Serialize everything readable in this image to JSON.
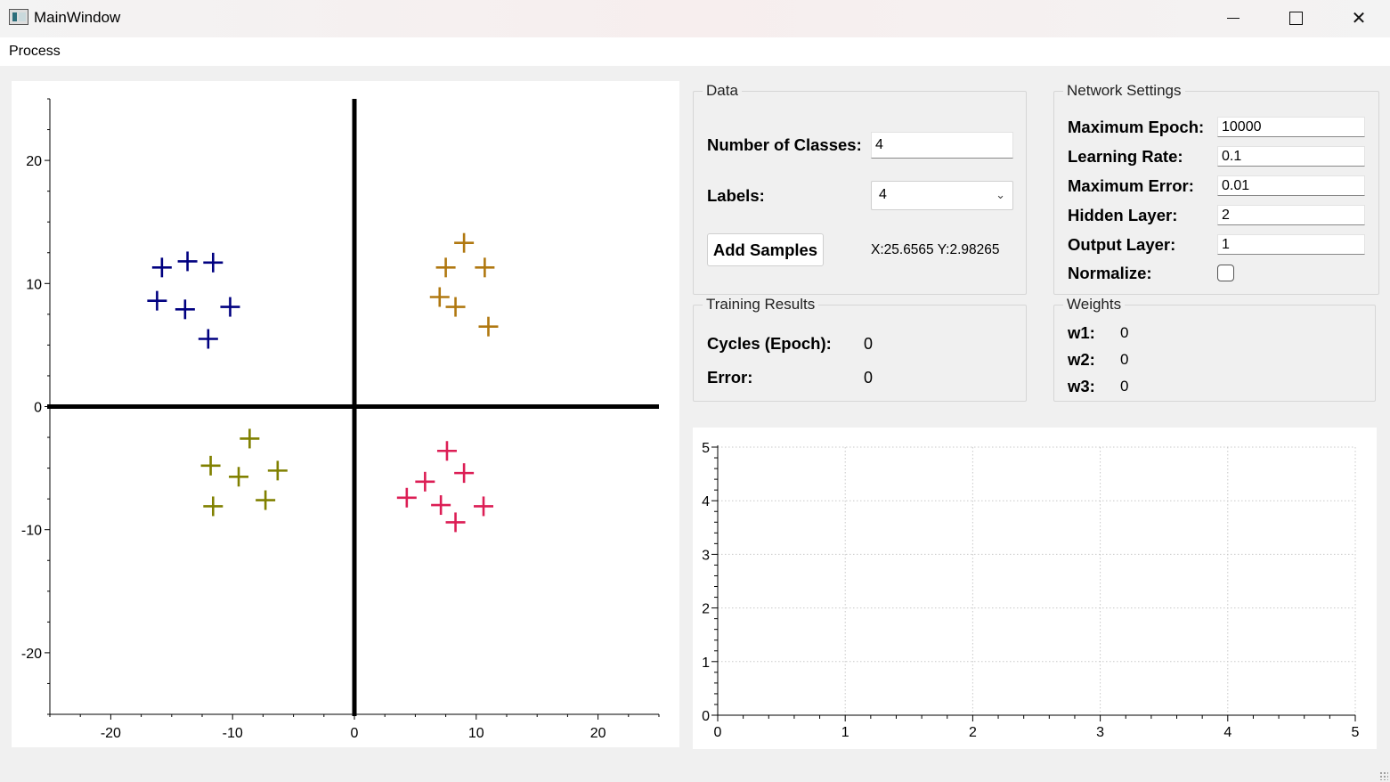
{
  "window": {
    "title": "MainWindow",
    "icons": {
      "app": "app-window-icon",
      "minimize": "minimize-icon",
      "maximize": "maximize-icon",
      "close": "close-icon"
    }
  },
  "menu": {
    "items": [
      "Process"
    ]
  },
  "data_group": {
    "title": "Data",
    "num_classes_label": "Number of Classes:",
    "num_classes_value": "4",
    "labels_label": "Labels:",
    "labels_value": "4",
    "add_samples_label": "Add Samples",
    "coords_readout": "X:25.6565 Y:2.98265"
  },
  "network_settings": {
    "title": "Network Settings",
    "max_epoch_label": "Maximum Epoch:",
    "max_epoch_value": "10000",
    "learning_rate_label": "Learning Rate:",
    "learning_rate_value": "0.1",
    "max_error_label": "Maximum Error:",
    "max_error_value": "0.01",
    "hidden_layer_label": "Hidden Layer:",
    "hidden_layer_value": "2",
    "output_layer_label": "Output Layer:",
    "output_layer_value": "1",
    "normalize_label": "Normalize:",
    "normalize_checked": false
  },
  "training_results": {
    "title": "Training Results",
    "cycles_label": "Cycles (Epoch):",
    "cycles_value": "0",
    "error_label": "Error:",
    "error_value": "0"
  },
  "weights": {
    "title": "Weights",
    "w1_label": "w1:",
    "w1_value": "0",
    "w2_label": "w2:",
    "w2_value": "0",
    "w3_label": "w3:",
    "w3_value": "0"
  },
  "chart_data": [
    {
      "type": "scatter",
      "title": "",
      "xlabel": "",
      "ylabel": "",
      "xlim": [
        -25,
        25
      ],
      "ylim": [
        -25,
        25
      ],
      "xticks": [
        -20,
        -10,
        0,
        10,
        20
      ],
      "yticks": [
        -20,
        -10,
        0,
        10,
        20
      ],
      "grid": false,
      "axes_lines_through_origin": true,
      "marker": "plus",
      "series": [
        {
          "color": "#000080",
          "points": [
            [
              -15.8,
              11.3
            ],
            [
              -13.7,
              11.8
            ],
            [
              -11.6,
              11.7
            ],
            [
              -16.2,
              8.6
            ],
            [
              -13.9,
              7.9
            ],
            [
              -10.2,
              8.1
            ],
            [
              -12.0,
              5.5
            ]
          ]
        },
        {
          "color": "#b07810",
          "points": [
            [
              9.0,
              13.3
            ],
            [
              7.5,
              11.3
            ],
            [
              10.7,
              11.3
            ],
            [
              7.0,
              8.9
            ],
            [
              8.3,
              8.1
            ],
            [
              11.0,
              6.5
            ]
          ]
        },
        {
          "color": "#808000",
          "points": [
            [
              -8.6,
              -2.6
            ],
            [
              -11.8,
              -4.8
            ],
            [
              -9.5,
              -5.7
            ],
            [
              -6.3,
              -5.2
            ],
            [
              -11.6,
              -8.1
            ],
            [
              -7.3,
              -7.6
            ]
          ]
        },
        {
          "color": "#dc1e55",
          "points": [
            [
              7.6,
              -3.6
            ],
            [
              5.8,
              -6.1
            ],
            [
              9.0,
              -5.4
            ],
            [
              4.3,
              -7.4
            ],
            [
              7.1,
              -8.0
            ],
            [
              10.6,
              -8.1
            ],
            [
              8.3,
              -9.4
            ]
          ]
        }
      ]
    },
    {
      "type": "line",
      "title": "",
      "xlabel": "",
      "ylabel": "",
      "xlim": [
        0,
        5
      ],
      "ylim": [
        0,
        5
      ],
      "xticks": [
        0,
        1,
        2,
        3,
        4,
        5
      ],
      "yticks": [
        0,
        1,
        2,
        3,
        4,
        5
      ],
      "grid": true,
      "series": []
    }
  ]
}
